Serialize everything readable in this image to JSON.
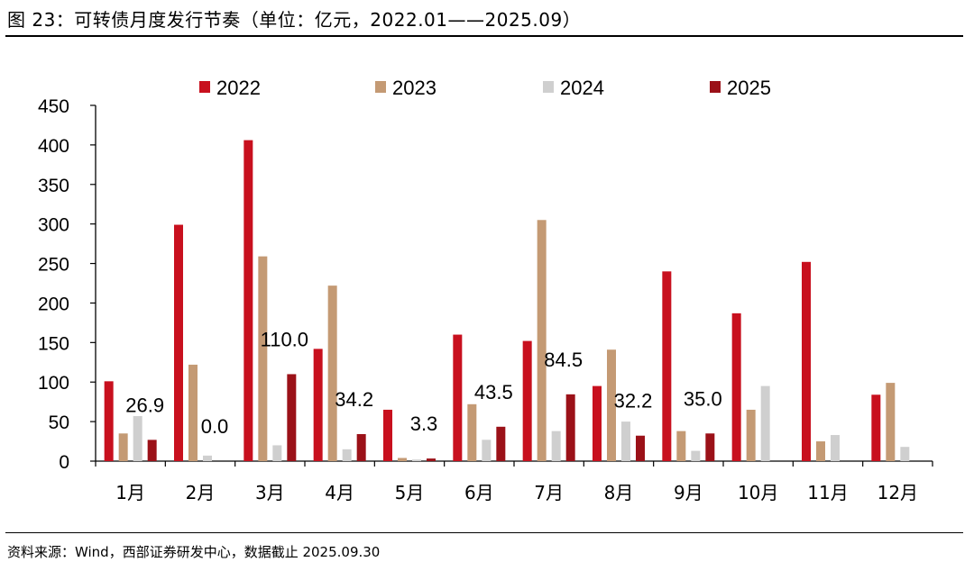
{
  "title": "图 23：可转债月度发行节奏（单位：亿元，2022.01——2025.09）",
  "source": "资料来源：Wind，西部证券研发中心，数据截止 2025.09.30",
  "chart_data": {
    "type": "bar",
    "title": "可转债月度发行节奏",
    "unit": "亿元",
    "categories": [
      "1月",
      "2月",
      "3月",
      "4月",
      "5月",
      "6月",
      "7月",
      "8月",
      "9月",
      "10月",
      "11月",
      "12月"
    ],
    "ylim": [
      0,
      450
    ],
    "yticks": [
      0,
      50,
      100,
      150,
      200,
      250,
      300,
      350,
      400,
      450
    ],
    "grid": false,
    "legend_position": "top",
    "series": [
      {
        "name": "2022",
        "color": "#c8101e",
        "values": [
          101,
          299,
          406,
          142,
          65,
          160,
          152,
          95,
          240,
          187,
          252,
          84
        ]
      },
      {
        "name": "2023",
        "color": "#c49a74",
        "values": [
          35,
          122,
          259,
          222,
          4,
          72,
          305,
          141,
          38,
          65,
          25,
          99
        ]
      },
      {
        "name": "2024",
        "color": "#cfcfcf",
        "values": [
          57,
          7,
          20,
          15,
          2,
          27,
          38,
          50,
          13,
          95,
          33,
          18
        ]
      },
      {
        "name": "2025",
        "color": "#9b1118",
        "values": [
          26.9,
          0.0,
          110.0,
          34.2,
          3.3,
          43.5,
          84.5,
          32.2,
          35.0,
          null,
          null,
          null
        ]
      }
    ],
    "data_labels": [
      "26.9",
      "0.0",
      "110.0",
      "34.2",
      "3.3",
      "43.5",
      "84.5",
      "32.2",
      "35.0"
    ]
  }
}
